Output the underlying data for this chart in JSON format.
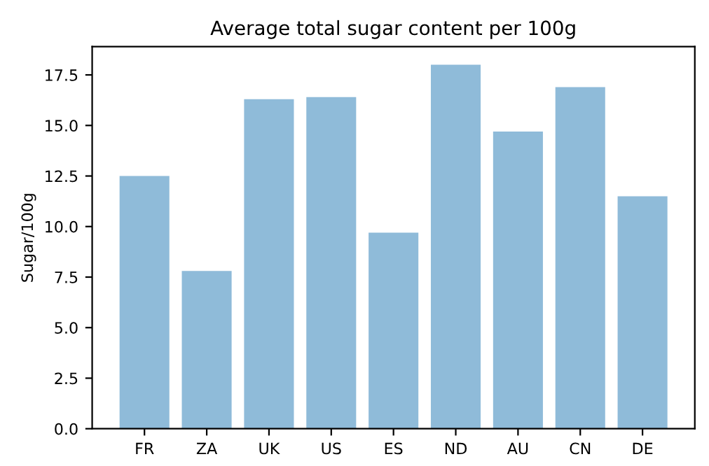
{
  "chart_data": {
    "type": "bar",
    "title": "Average total sugar content per 100g",
    "ylabel": "Sugar/100g",
    "categories": [
      "FR",
      "ZA",
      "UK",
      "US",
      "ES",
      "ND",
      "AU",
      "CN",
      "DE"
    ],
    "values": [
      12.5,
      7.8,
      16.3,
      16.4,
      9.7,
      18.0,
      14.7,
      16.9,
      11.5
    ],
    "color": "#8fbbd9",
    "ylim": [
      0,
      18.9
    ],
    "yticks": [
      {
        "value": 0,
        "label": "0.0"
      },
      2.5,
      {
        "value": 5,
        "label": "5.0"
      },
      7.5,
      {
        "value": 10,
        "label": "10.0"
      },
      12.5,
      {
        "value": 15,
        "label": "15.0"
      },
      17.5
    ],
    "grid": false
  }
}
